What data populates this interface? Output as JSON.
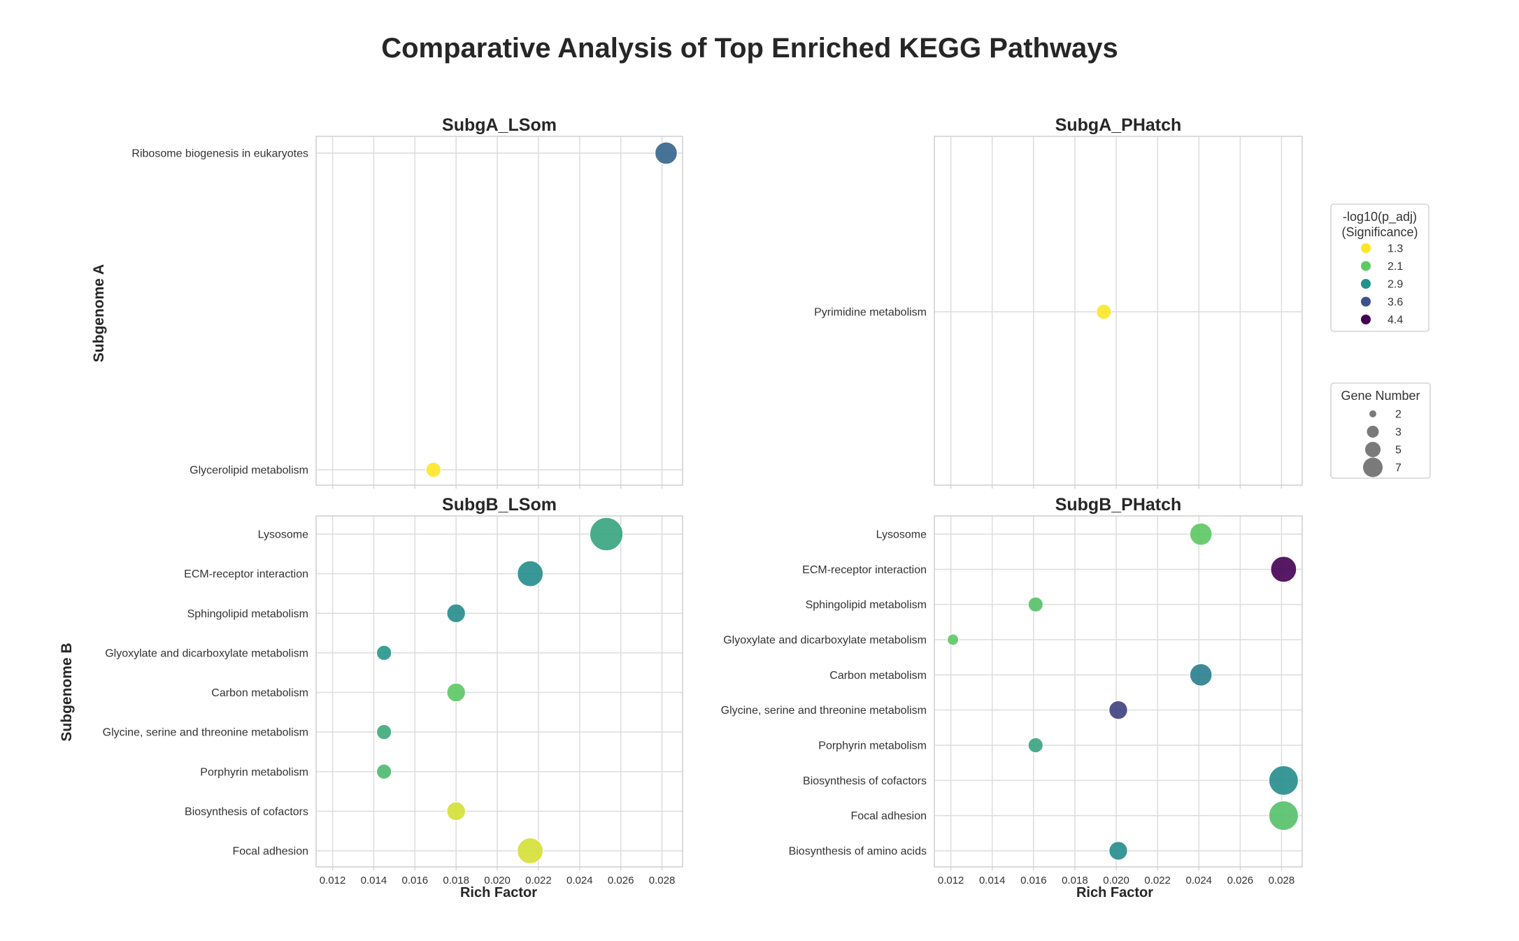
{
  "title": "Comparative Analysis of Top Enriched KEGG Pathways",
  "row_labels": [
    "Subgenome A",
    "Subgenome B"
  ],
  "xlabel": "Rich Factor",
  "x_ticks": [
    "0.012",
    "0.014",
    "0.016",
    "0.018",
    "0.020",
    "0.022",
    "0.024",
    "0.026",
    "0.028"
  ],
  "legend": {
    "color_title_line1": "-log10(p_adj)",
    "color_title_line2": "(Significance)",
    "color_items": [
      {
        "label": "1.3",
        "color": "#fde725"
      },
      {
        "label": "2.1",
        "color": "#5ec962"
      },
      {
        "label": "2.9",
        "color": "#21918c"
      },
      {
        "label": "3.6",
        "color": "#3b528b"
      },
      {
        "label": "4.4",
        "color": "#440154"
      }
    ],
    "size_title": "Gene Number",
    "size_items": [
      {
        "label": "2",
        "value": 2
      },
      {
        "label": "3",
        "value": 3
      },
      {
        "label": "5",
        "value": 5
      },
      {
        "label": "7",
        "value": 7
      }
    ]
  },
  "chart_data": [
    {
      "type": "scatter",
      "title": "SubgA_LSom",
      "xlabel": "",
      "ylabel": "Subgenome A",
      "xlim": [
        0.0112,
        0.029
      ],
      "categories": [
        "Ribosome biogenesis in eukaryotes",
        "Glycerolipid metabolism"
      ],
      "points": [
        {
          "pathway": "Ribosome biogenesis in eukaryotes",
          "rich_factor": 0.0282,
          "neg_log10_padj": 3.4,
          "gene_number": 4
        },
        {
          "pathway": "Glycerolipid metabolism",
          "rich_factor": 0.0169,
          "neg_log10_padj": 1.3,
          "gene_number": 2
        }
      ]
    },
    {
      "type": "scatter",
      "title": "SubgA_PHatch",
      "xlabel": "",
      "ylabel": "",
      "xlim": [
        0.0112,
        0.029
      ],
      "categories": [
        "Pyrimidine metabolism"
      ],
      "points": [
        {
          "pathway": "Pyrimidine metabolism",
          "rich_factor": 0.0194,
          "neg_log10_padj": 1.3,
          "gene_number": 2
        }
      ]
    },
    {
      "type": "scatter",
      "title": "SubgB_LSom",
      "xlabel": "Rich Factor",
      "ylabel": "Subgenome B",
      "xlim": [
        0.0112,
        0.029
      ],
      "categories": [
        "Lysosome",
        "ECM-receptor interaction",
        "Sphingolipid metabolism",
        "Glyoxylate and dicarboxylate metabolism",
        "Carbon metabolism",
        "Glycine, serine and threonine metabolism",
        "Porphyrin metabolism",
        "Biosynthesis of cofactors",
        "Focal adhesion"
      ],
      "points": [
        {
          "pathway": "Lysosome",
          "rich_factor": 0.0253,
          "neg_log10_padj": 2.6,
          "gene_number": 7
        },
        {
          "pathway": "ECM-receptor interaction",
          "rich_factor": 0.0216,
          "neg_log10_padj": 2.9,
          "gene_number": 5
        },
        {
          "pathway": "Sphingolipid metabolism",
          "rich_factor": 0.018,
          "neg_log10_padj": 2.9,
          "gene_number": 3
        },
        {
          "pathway": "Glyoxylate and dicarboxylate metabolism",
          "rich_factor": 0.0145,
          "neg_log10_padj": 2.8,
          "gene_number": 2
        },
        {
          "pathway": "Carbon metabolism",
          "rich_factor": 0.018,
          "neg_log10_padj": 2.1,
          "gene_number": 3
        },
        {
          "pathway": "Glycine, serine and threonine metabolism",
          "rich_factor": 0.0145,
          "neg_log10_padj": 2.5,
          "gene_number": 2
        },
        {
          "pathway": "Porphyrin metabolism",
          "rich_factor": 0.0145,
          "neg_log10_padj": 2.3,
          "gene_number": 2
        },
        {
          "pathway": "Biosynthesis of cofactors",
          "rich_factor": 0.018,
          "neg_log10_padj": 1.5,
          "gene_number": 3
        },
        {
          "pathway": "Focal adhesion",
          "rich_factor": 0.0216,
          "neg_log10_padj": 1.5,
          "gene_number": 5
        }
      ]
    },
    {
      "type": "scatter",
      "title": "SubgB_PHatch",
      "xlabel": "Rich Factor",
      "ylabel": "",
      "xlim": [
        0.0112,
        0.029
      ],
      "categories": [
        "Lysosome",
        "ECM-receptor interaction",
        "Sphingolipid metabolism",
        "Glyoxylate and dicarboxylate metabolism",
        "Carbon metabolism",
        "Glycine, serine and threonine metabolism",
        "Porphyrin metabolism",
        "Biosynthesis of cofactors",
        "Focal adhesion",
        "Biosynthesis of amino acids"
      ],
      "points": [
        {
          "pathway": "Lysosome",
          "rich_factor": 0.0241,
          "neg_log10_padj": 2.1,
          "gene_number": 4
        },
        {
          "pathway": "ECM-receptor interaction",
          "rich_factor": 0.0281,
          "neg_log10_padj": 4.4,
          "gene_number": 5
        },
        {
          "pathway": "Sphingolipid metabolism",
          "rich_factor": 0.0161,
          "neg_log10_padj": 2.2,
          "gene_number": 2
        },
        {
          "pathway": "Glyoxylate and dicarboxylate metabolism",
          "rich_factor": 0.0121,
          "neg_log10_padj": 2.1,
          "gene_number": 1
        },
        {
          "pathway": "Carbon metabolism",
          "rich_factor": 0.0241,
          "neg_log10_padj": 3.1,
          "gene_number": 4
        },
        {
          "pathway": "Glycine, serine and threonine metabolism",
          "rich_factor": 0.0201,
          "neg_log10_padj": 3.8,
          "gene_number": 3
        },
        {
          "pathway": "Porphyrin metabolism",
          "rich_factor": 0.0161,
          "neg_log10_padj": 2.6,
          "gene_number": 2
        },
        {
          "pathway": "Biosynthesis of cofactors",
          "rich_factor": 0.0281,
          "neg_log10_padj": 2.9,
          "gene_number": 6
        },
        {
          "pathway": "Focal adhesion",
          "rich_factor": 0.0281,
          "neg_log10_padj": 2.2,
          "gene_number": 6
        },
        {
          "pathway": "Biosynthesis of amino acids",
          "rich_factor": 0.0201,
          "neg_log10_padj": 2.9,
          "gene_number": 3
        }
      ]
    }
  ]
}
